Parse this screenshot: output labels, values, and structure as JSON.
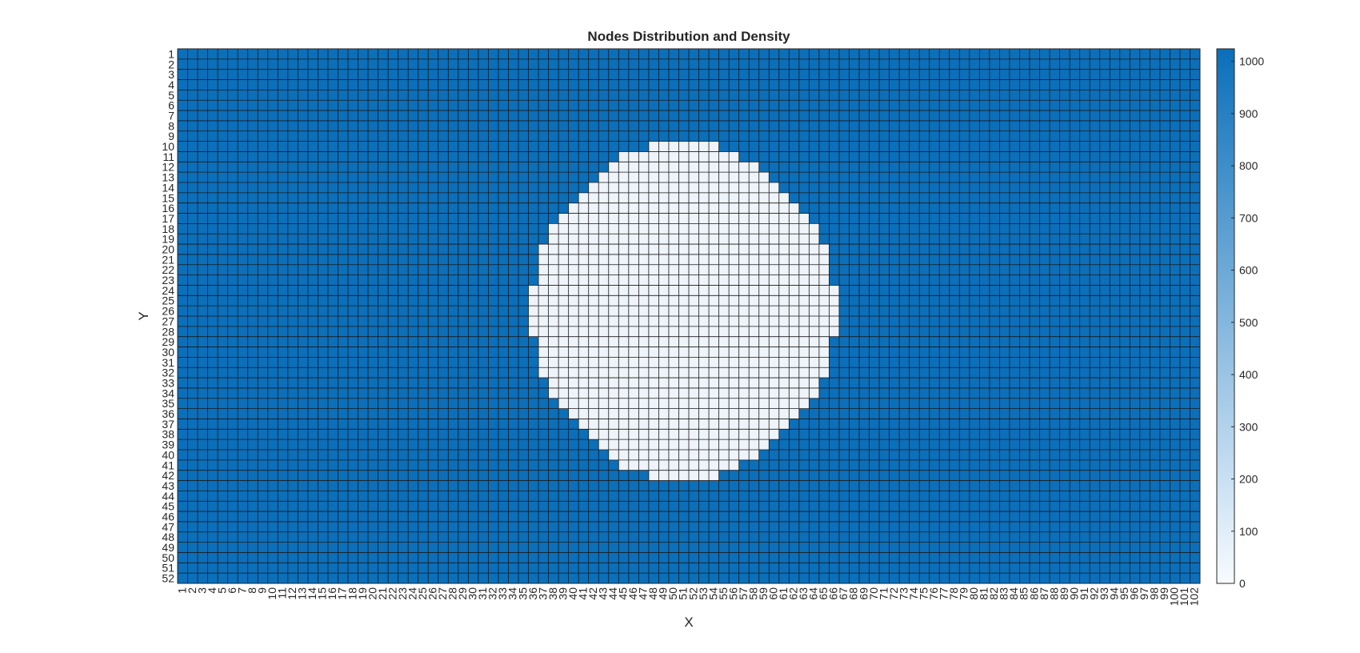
{
  "chart_data": {
    "type": "heatmap",
    "title": "Nodes Distribution and Density",
    "xlabel": "X",
    "ylabel": "Y",
    "x_categories": [
      1,
      2,
      3,
      4,
      5,
      6,
      7,
      8,
      9,
      10,
      11,
      12,
      13,
      14,
      15,
      16,
      17,
      18,
      19,
      20,
      21,
      22,
      23,
      24,
      25,
      26,
      27,
      28,
      29,
      30,
      31,
      32,
      33,
      34,
      35,
      36,
      37,
      38,
      39,
      40,
      41,
      42,
      43,
      44,
      45,
      46,
      47,
      48,
      49,
      50,
      51,
      52,
      53,
      54,
      55,
      56,
      57,
      58,
      59,
      60,
      61,
      62,
      63,
      64,
      65,
      66,
      67,
      68,
      69,
      70,
      71,
      72,
      73,
      74,
      75,
      76,
      77,
      78,
      79,
      80,
      81,
      82,
      83,
      84,
      85,
      86,
      87,
      88,
      89,
      90,
      91,
      92,
      93,
      94,
      95,
      96,
      97,
      98,
      99,
      100,
      101,
      102
    ],
    "y_categories": [
      1,
      2,
      3,
      4,
      5,
      6,
      7,
      8,
      9,
      10,
      11,
      12,
      13,
      14,
      15,
      16,
      17,
      18,
      19,
      20,
      21,
      22,
      23,
      24,
      25,
      26,
      27,
      28,
      29,
      30,
      31,
      32,
      33,
      34,
      35,
      36,
      37,
      38,
      39,
      40,
      41,
      42,
      43,
      44,
      45,
      46,
      47,
      48,
      49,
      50,
      51,
      52
    ],
    "cell_value_background": 1024,
    "cell_value_region": 0,
    "low_value_region_rows": [
      {
        "y": 10,
        "x_from": 48,
        "x_to": 54
      },
      {
        "y": 11,
        "x_from": 45,
        "x_to": 56
      },
      {
        "y": 12,
        "x_from": 44,
        "x_to": 58
      },
      {
        "y": 13,
        "x_from": 43,
        "x_to": 59
      },
      {
        "y": 14,
        "x_from": 42,
        "x_to": 60
      },
      {
        "y": 15,
        "x_from": 41,
        "x_to": 61
      },
      {
        "y": 16,
        "x_from": 40,
        "x_to": 62
      },
      {
        "y": 17,
        "x_from": 39,
        "x_to": 63
      },
      {
        "y": 18,
        "x_from": 38,
        "x_to": 64
      },
      {
        "y": 19,
        "x_from": 38,
        "x_to": 64
      },
      {
        "y": 20,
        "x_from": 37,
        "x_to": 65
      },
      {
        "y": 21,
        "x_from": 37,
        "x_to": 65
      },
      {
        "y": 22,
        "x_from": 37,
        "x_to": 65
      },
      {
        "y": 23,
        "x_from": 37,
        "x_to": 65
      },
      {
        "y": 24,
        "x_from": 36,
        "x_to": 66
      },
      {
        "y": 25,
        "x_from": 36,
        "x_to": 66
      },
      {
        "y": 26,
        "x_from": 36,
        "x_to": 66
      },
      {
        "y": 27,
        "x_from": 36,
        "x_to": 66
      },
      {
        "y": 28,
        "x_from": 36,
        "x_to": 66
      },
      {
        "y": 29,
        "x_from": 37,
        "x_to": 65
      },
      {
        "y": 30,
        "x_from": 37,
        "x_to": 65
      },
      {
        "y": 31,
        "x_from": 37,
        "x_to": 65
      },
      {
        "y": 32,
        "x_from": 37,
        "x_to": 65
      },
      {
        "y": 33,
        "x_from": 38,
        "x_to": 64
      },
      {
        "y": 34,
        "x_from": 38,
        "x_to": 64
      },
      {
        "y": 35,
        "x_from": 39,
        "x_to": 63
      },
      {
        "y": 36,
        "x_from": 40,
        "x_to": 62
      },
      {
        "y": 37,
        "x_from": 41,
        "x_to": 61
      },
      {
        "y": 38,
        "x_from": 42,
        "x_to": 60
      },
      {
        "y": 39,
        "x_from": 43,
        "x_to": 59
      },
      {
        "y": 40,
        "x_from": 44,
        "x_to": 58
      },
      {
        "y": 41,
        "x_from": 45,
        "x_to": 56
      },
      {
        "y": 42,
        "x_from": 48,
        "x_to": 54
      }
    ],
    "colorbar": {
      "range": [
        0,
        1024
      ],
      "ticks": [
        0,
        100,
        200,
        300,
        400,
        500,
        600,
        700,
        800,
        900,
        1000
      ],
      "color_low": "#f7fbff",
      "color_high": "#0b6fba"
    },
    "colors": {
      "background_cell": "#0b6fba",
      "region_cell": "#eef4fa",
      "grid_line": "#1a1a1a"
    }
  }
}
